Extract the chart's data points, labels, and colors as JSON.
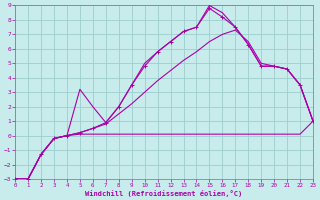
{
  "xlabel": "Windchill (Refroidissement éolien,°C)",
  "xlim": [
    0,
    23
  ],
  "ylim": [
    -3,
    9
  ],
  "xtick_vals": [
    0,
    1,
    2,
    3,
    4,
    5,
    6,
    7,
    8,
    9,
    10,
    11,
    12,
    13,
    14,
    15,
    16,
    17,
    18,
    19,
    20,
    21,
    22,
    23
  ],
  "ytick_vals": [
    -3,
    -2,
    -1,
    0,
    1,
    2,
    3,
    4,
    5,
    6,
    7,
    8,
    9
  ],
  "bg_color": "#c8ecec",
  "grid_color": "#9ecece",
  "line_color": "#aa00aa",
  "line1_x": [
    0,
    1,
    2,
    3,
    4,
    5,
    6,
    7,
    8,
    9,
    10,
    11,
    12,
    13,
    14,
    15,
    16,
    17,
    18,
    19,
    20,
    21,
    22,
    23
  ],
  "line1_y": [
    -3,
    -3,
    -1.3,
    -0.2,
    0.0,
    0.1,
    0.1,
    0.1,
    0.1,
    0.1,
    0.1,
    0.1,
    0.1,
    0.1,
    0.1,
    0.1,
    0.1,
    0.1,
    0.1,
    0.1,
    0.1,
    0.1,
    0.1,
    1.0
  ],
  "line2_x": [
    0,
    1,
    2,
    3,
    4,
    5,
    6,
    7,
    8,
    9,
    10,
    11,
    12,
    13,
    14,
    15,
    16,
    17,
    18,
    19,
    20,
    21,
    22,
    23
  ],
  "line2_y": [
    -3,
    -3,
    -1.3,
    -0.2,
    0.0,
    0.2,
    0.5,
    0.8,
    1.5,
    2.2,
    3.0,
    3.8,
    4.5,
    5.2,
    5.8,
    6.5,
    7.0,
    7.3,
    6.5,
    5.0,
    4.8,
    4.6,
    3.5,
    1.0
  ],
  "line3_x": [
    0,
    1,
    2,
    3,
    4,
    5,
    6,
    7,
    8,
    9,
    10,
    11,
    12,
    13,
    14,
    15,
    16,
    17,
    18,
    19,
    20,
    21,
    22,
    23
  ],
  "line3_y": [
    -3,
    -3,
    -1.3,
    -0.2,
    0.0,
    0.2,
    0.5,
    0.9,
    2.0,
    3.5,
    4.8,
    5.8,
    6.5,
    7.2,
    7.5,
    8.8,
    8.2,
    7.5,
    6.3,
    4.8,
    4.8,
    4.6,
    3.5,
    1.0
  ],
  "line4_x": [
    0,
    1,
    2,
    3,
    4,
    5,
    6,
    7,
    8,
    9,
    10,
    11,
    12,
    13,
    14,
    15,
    16,
    17,
    18,
    19,
    20,
    21,
    22,
    23
  ],
  "line4_y": [
    -3,
    -3,
    -1.3,
    -0.2,
    0.0,
    3.2,
    2.0,
    0.9,
    2.0,
    3.5,
    5.0,
    5.8,
    6.5,
    7.2,
    7.5,
    9.0,
    8.5,
    7.5,
    6.3,
    4.8,
    4.8,
    4.6,
    3.5,
    1.0
  ]
}
